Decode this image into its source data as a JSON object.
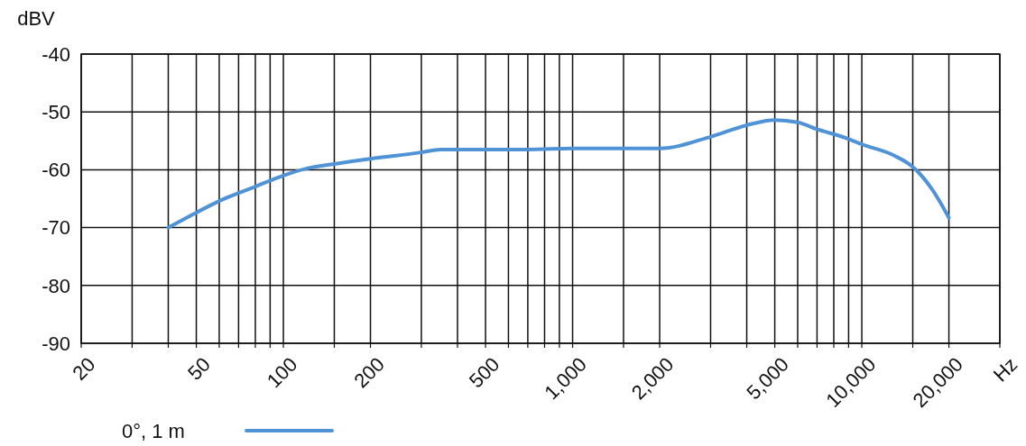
{
  "chart_data": {
    "type": "line",
    "ylabel": "dBV",
    "xlabel": "Hz",
    "log": "x",
    "grid": true,
    "legend": "bottom left",
    "marker": "none",
    "line_style": "solid",
    "xlim": [
      20,
      30000
    ],
    "ylim": [
      -90,
      -40
    ],
    "xticks": [
      20,
      {
        "value": 30,
        "label": null
      },
      {
        "value": 40,
        "label": null
      },
      50,
      {
        "value": 60,
        "label": null
      },
      {
        "value": 70,
        "label": null
      },
      {
        "value": 80,
        "label": null
      },
      {
        "value": 90,
        "label": null
      },
      100,
      {
        "value": 150,
        "label": null
      },
      200,
      {
        "value": 300,
        "label": null
      },
      {
        "value": 400,
        "label": null
      },
      500,
      {
        "value": 600,
        "label": null
      },
      {
        "value": 700,
        "label": null
      },
      {
        "value": 800,
        "label": null
      },
      {
        "value": 900,
        "label": null
      },
      {
        "value": 1000,
        "label": "1,000"
      },
      {
        "value": 1500,
        "label": null
      },
      {
        "value": 2000,
        "label": "2,000"
      },
      {
        "value": 3000,
        "label": null
      },
      {
        "value": 4000,
        "label": null
      },
      {
        "value": 5000,
        "label": "5,000"
      },
      {
        "value": 6000,
        "label": null
      },
      {
        "value": 7000,
        "label": null
      },
      {
        "value": 8000,
        "label": null
      },
      {
        "value": 9000,
        "label": null
      },
      {
        "value": 10000,
        "label": "10,000"
      },
      {
        "value": 15000,
        "label": null
      },
      {
        "value": 20000,
        "label": "20,000"
      },
      {
        "value": 30000,
        "label": null
      }
    ],
    "yticks": [
      -90,
      -80,
      -70,
      -60,
      -50,
      -40
    ],
    "series": [
      {
        "name": "0°, 1 m",
        "color": "#4f93d6",
        "x": [
          40,
          50,
          60,
          80,
          100,
          120,
          150,
          200,
          300,
          350,
          700,
          1000,
          1500,
          2000,
          3000,
          4000,
          5000,
          6000,
          7000,
          8800,
          10000,
          13000,
          15000,
          17500,
          20000
        ],
        "values": [
          -70,
          -67.4,
          -65.4,
          -62.9,
          -61,
          -59.8,
          -59,
          -58.1,
          -57,
          -56.5,
          -56.5,
          -56.3,
          -56.3,
          -56.3,
          -54.3,
          -52.3,
          -51.4,
          -51.8,
          -53,
          -54.5,
          -55.6,
          -57.6,
          -59.5,
          -63.4,
          -68.3
        ]
      }
    ]
  }
}
